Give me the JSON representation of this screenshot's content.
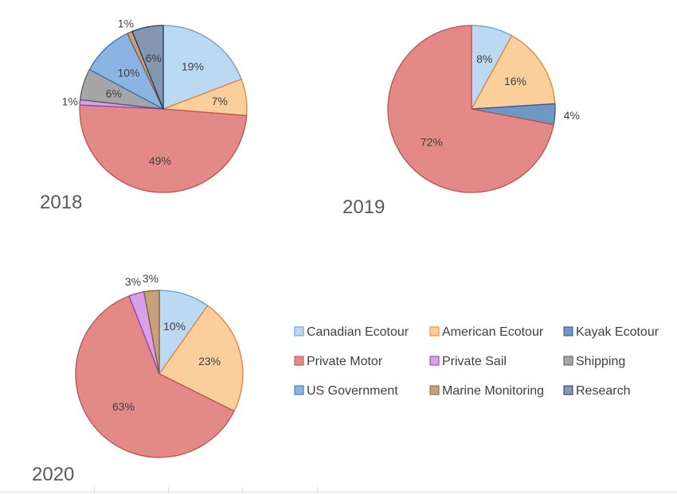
{
  "categories": [
    "Canadian Ecotour",
    "American Ecotour",
    "Kayak Ecotour",
    "Private Motor",
    "Private Sail",
    "Shipping",
    "US Government",
    "Marine Monitoring",
    "Research"
  ],
  "colors": {
    "Canadian Ecotour": {
      "fill": "#bcd9f2",
      "stroke": "#5b9bd5"
    },
    "American Ecotour": {
      "fill": "#fbcf9b",
      "stroke": "#ed7d31"
    },
    "Kayak Ecotour": {
      "fill": "#6f98c4",
      "stroke": "#2f5597"
    },
    "Private Motor": {
      "fill": "#e38a88",
      "stroke": "#c0504d"
    },
    "Private Sail": {
      "fill": "#d7a0e8",
      "stroke": "#8e44ad"
    },
    "Shipping": {
      "fill": "#a6a6a6",
      "stroke": "#595959"
    },
    "US Government": {
      "fill": "#8cb4e2",
      "stroke": "#2e75b6"
    },
    "Marine Monitoring": {
      "fill": "#c9a07c",
      "stroke": "#7f5f3f"
    },
    "Research": {
      "fill": "#8496b0",
      "stroke": "#1f3864"
    }
  },
  "chart_data": [
    {
      "type": "pie",
      "title": "2018",
      "slices": [
        {
          "category": "Canadian Ecotour",
          "value": 19,
          "label": "19%"
        },
        {
          "category": "American Ecotour",
          "value": 7,
          "label": "7%"
        },
        {
          "category": "Private Motor",
          "value": 49,
          "label": "49%"
        },
        {
          "category": "Private Sail",
          "value": 1,
          "label": "1%"
        },
        {
          "category": "Shipping",
          "value": 6,
          "label": "6%"
        },
        {
          "category": "US Government",
          "value": 10,
          "label": "10%"
        },
        {
          "category": "Marine Monitoring",
          "value": 1,
          "label": "1%"
        },
        {
          "category": "Research",
          "value": 6,
          "label": "6%"
        }
      ]
    },
    {
      "type": "pie",
      "title": "2019",
      "slices": [
        {
          "category": "Canadian Ecotour",
          "value": 8,
          "label": "8%"
        },
        {
          "category": "American Ecotour",
          "value": 16,
          "label": "16%"
        },
        {
          "category": "Kayak Ecotour",
          "value": 4,
          "label": "4%"
        },
        {
          "category": "Private Motor",
          "value": 72,
          "label": "72%"
        }
      ]
    },
    {
      "type": "pie",
      "title": "2020",
      "slices": [
        {
          "category": "Canadian Ecotour",
          "value": 10,
          "label": "10%"
        },
        {
          "category": "American Ecotour",
          "value": 23,
          "label": "23%"
        },
        {
          "category": "Private Motor",
          "value": 63,
          "label": "63%"
        },
        {
          "category": "Private Sail",
          "value": 3,
          "label": "3%"
        },
        {
          "category": "Marine Monitoring",
          "value": 3,
          "label": "3%"
        }
      ]
    }
  ],
  "legend": {
    "placement": "right",
    "items": [
      {
        "label": "Canadian Ecotour",
        "category": "Canadian Ecotour"
      },
      {
        "label": "American Ecotour",
        "category": "American Ecotour"
      },
      {
        "label": "Kayak Ecotour",
        "category": "Kayak Ecotour"
      },
      {
        "label": "Private Motor",
        "category": "Private Motor"
      },
      {
        "label": "Private Sail",
        "category": "Private Sail"
      },
      {
        "label": "Shipping",
        "category": "Shipping"
      },
      {
        "label": "US Government",
        "category": "US Government"
      },
      {
        "label": "Marine Monitoring",
        "category": "Marine Monitoring"
      },
      {
        "label": "Research",
        "category": "Research"
      }
    ]
  }
}
